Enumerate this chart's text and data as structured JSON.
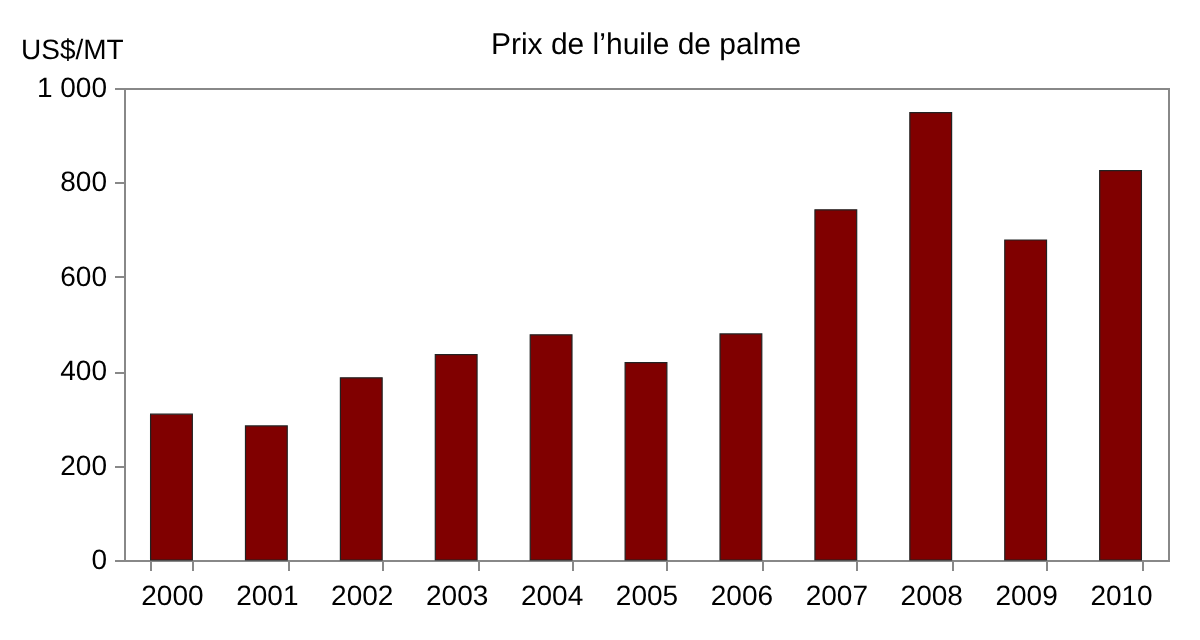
{
  "chart_data": {
    "type": "bar",
    "title": "Prix de l’huile de palme",
    "ylabel": "US$/MT",
    "categories": [
      "2000",
      "2001",
      "2002",
      "2003",
      "2004",
      "2005",
      "2006",
      "2007",
      "2008",
      "2009",
      "2010"
    ],
    "values": [
      309,
      284,
      386,
      435,
      477,
      418,
      479,
      742,
      948,
      678,
      825
    ],
    "color": "#800000",
    "ylim": [
      0,
      1000
    ],
    "yticks": [
      0,
      200,
      400,
      600,
      800,
      {
        "value": 1000,
        "label": "1 000"
      }
    ],
    "grid": false
  }
}
